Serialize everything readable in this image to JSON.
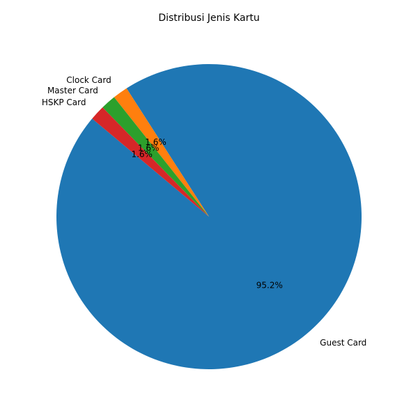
{
  "chart_data": {
    "type": "pie",
    "title": "Distribusi Jenis Kartu",
    "start_angle_deg": 140,
    "direction": "counterclockwise",
    "slices": [
      {
        "label": "Guest Card",
        "value": 95.2,
        "pct_text": "95.2%",
        "color": "#1f77b4"
      },
      {
        "label": "Clock Card",
        "value": 1.6,
        "pct_text": "1.6%",
        "color": "#ff7f0e"
      },
      {
        "label": "Master Card",
        "value": 1.6,
        "pct_text": "1.6%",
        "color": "#2ca02c"
      },
      {
        "label": "HSKP Card",
        "value": 1.6,
        "pct_text": "1.6%",
        "color": "#d62728"
      }
    ]
  }
}
